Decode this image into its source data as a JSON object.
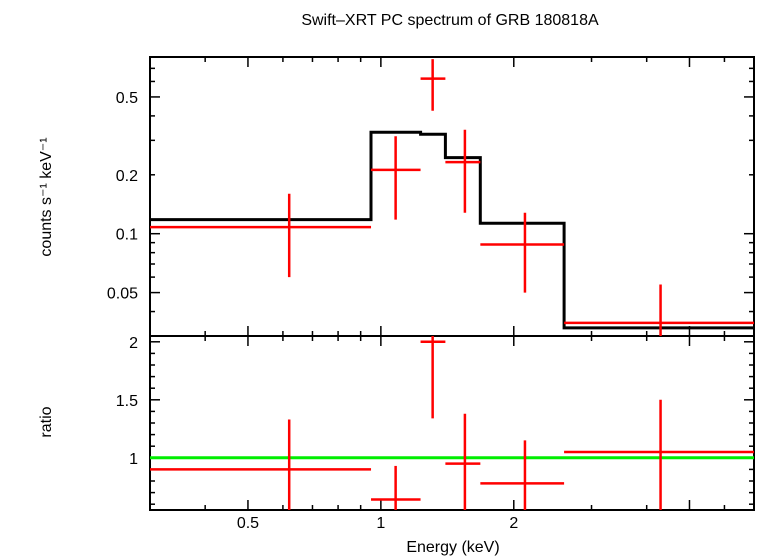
{
  "chart_data": {
    "type": "scatter",
    "title": "Swift–XRT PC spectrum of GRB 180818A",
    "xlabel": "Energy (keV)",
    "x_scale": "log",
    "xlim": [
      0.3,
      7.0
    ],
    "x_tick_labels": [
      "0.5",
      "1",
      "2"
    ],
    "panels": [
      {
        "name": "spectrum",
        "ylabel": "counts s⁻¹ keV⁻¹",
        "y_scale": "log",
        "ylim": [
          0.03,
          0.8
        ],
        "y_tick_labels": [
          "0.5",
          "0.2",
          "0.1",
          "0.05"
        ],
        "series": [
          {
            "color": "#ff0000",
            "points": [
              {
                "x": 0.62,
                "x_lo": 0.3,
                "x_hi": 0.95,
                "y": 0.108,
                "y_lo": 0.06,
                "y_hi": 0.16
              },
              {
                "x": 1.08,
                "x_lo": 0.95,
                "x_hi": 1.23,
                "y": 0.212,
                "y_lo": 0.118,
                "y_hi": 0.315
              },
              {
                "x": 1.31,
                "x_lo": 1.23,
                "x_hi": 1.4,
                "y": 0.62,
                "y_lo": 0.425,
                "y_hi": 0.78
              },
              {
                "x": 1.55,
                "x_lo": 1.4,
                "x_hi": 1.68,
                "y": 0.232,
                "y_lo": 0.128,
                "y_hi": 0.34
              },
              {
                "x": 2.12,
                "x_lo": 1.68,
                "x_hi": 2.6,
                "y": 0.088,
                "y_lo": 0.05,
                "y_hi": 0.128
              },
              {
                "x": 4.3,
                "x_lo": 2.6,
                "x_hi": 7.0,
                "y": 0.035,
                "y_lo": 0.022,
                "y_hi": 0.055
              }
            ]
          },
          {
            "color": "#000000",
            "style": "step",
            "steps": [
              {
                "x_lo": 0.3,
                "x_hi": 0.95,
                "y": 0.118
              },
              {
                "x_lo": 0.95,
                "x_hi": 1.23,
                "y": 0.33
              },
              {
                "x_lo": 1.23,
                "x_hi": 1.4,
                "y": 0.322
              },
              {
                "x_lo": 1.4,
                "x_hi": 1.68,
                "y": 0.245
              },
              {
                "x_lo": 1.68,
                "x_hi": 2.6,
                "y": 0.113
              },
              {
                "x_lo": 2.6,
                "x_hi": 7.0,
                "y": 0.033
              }
            ]
          }
        ]
      },
      {
        "name": "ratio",
        "ylabel": "ratio",
        "y_scale": "linear",
        "ylim": [
          0.55,
          2.05
        ],
        "y_ticks": [
          1,
          1.5,
          2
        ],
        "y_tick_labels": [
          "1",
          "1.5",
          "2"
        ],
        "reference_line": {
          "y": 1,
          "color": "#00ee00"
        },
        "series": [
          {
            "color": "#ff0000",
            "points": [
              {
                "x": 0.62,
                "x_lo": 0.3,
                "x_hi": 0.95,
                "y": 0.9,
                "y_lo": 0.55,
                "y_hi": 1.33
              },
              {
                "x": 1.08,
                "x_lo": 0.95,
                "x_hi": 1.23,
                "y": 0.64,
                "y_lo": 0.55,
                "y_hi": 0.93
              },
              {
                "x": 1.31,
                "x_lo": 1.23,
                "x_hi": 1.4,
                "y": 2.0,
                "y_lo": 1.34,
                "y_hi": 2.05
              },
              {
                "x": 1.55,
                "x_lo": 1.4,
                "x_hi": 1.68,
                "y": 0.95,
                "y_lo": 0.55,
                "y_hi": 1.38
              },
              {
                "x": 2.12,
                "x_lo": 1.68,
                "x_hi": 2.6,
                "y": 0.78,
                "y_lo": 0.55,
                "y_hi": 1.15
              },
              {
                "x": 4.3,
                "x_lo": 2.6,
                "x_hi": 7.0,
                "y": 1.05,
                "y_lo": 0.55,
                "y_hi": 1.5
              }
            ]
          }
        ]
      }
    ]
  }
}
